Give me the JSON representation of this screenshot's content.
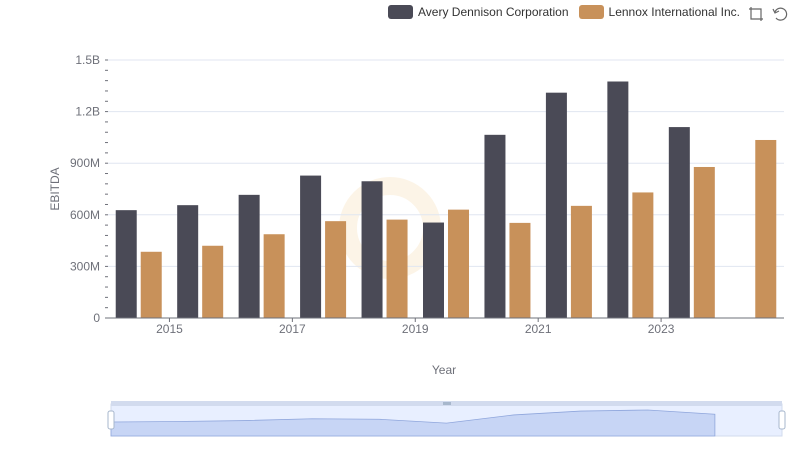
{
  "chart_data": {
    "type": "bar",
    "xlabel": "Year",
    "ylabel": "EBITDA",
    "categories": [
      "2014",
      "2015",
      "2016",
      "2017",
      "2018",
      "2019",
      "2020",
      "2021",
      "2022",
      "2023",
      "2024"
    ],
    "x_tick_labels": [
      "2015",
      "2017",
      "2019",
      "2021",
      "2023"
    ],
    "y_ticks": [
      0,
      300000000,
      600000000,
      900000000,
      1200000000,
      1500000000
    ],
    "y_tick_labels": [
      "0",
      "300M",
      "600M",
      "900M",
      "1.2B",
      "1.5B"
    ],
    "ylim": [
      0,
      1500000000
    ],
    "grid": true,
    "legend_position": "top-right",
    "series": [
      {
        "name": "Avery Dennison Corporation",
        "color": "#4a4a56",
        "values": [
          627000000,
          656000000,
          716000000,
          828000000,
          795000000,
          555000000,
          1065000000,
          1310000000,
          1375000000,
          1110000000,
          null
        ]
      },
      {
        "name": "Lennox International Inc.",
        "color": "#c8915a",
        "values": [
          385000000,
          420000000,
          487000000,
          563000000,
          572000000,
          630000000,
          553000000,
          652000000,
          730000000,
          878000000,
          1035000000
        ]
      }
    ]
  }
}
